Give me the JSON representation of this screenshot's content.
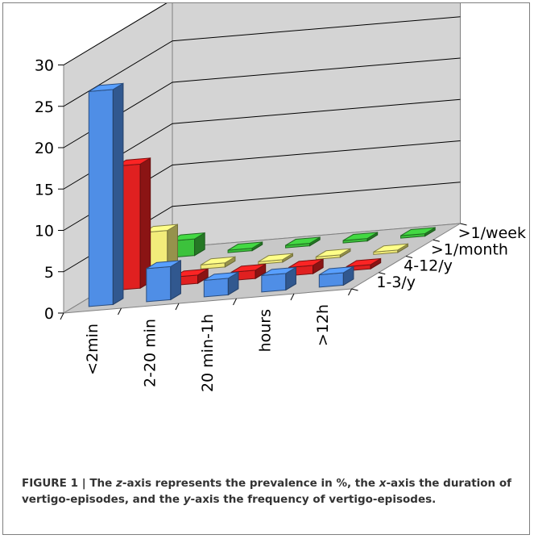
{
  "chart_data": {
    "type": "bar3d",
    "categories": [
      "<2min",
      "2-20 min",
      "20 min-1h",
      "hours",
      ">12h"
    ],
    "series": [
      {
        "name": "1-3/y",
        "values": [
          26,
          4,
          2,
          2,
          1.5
        ],
        "color": "#4f8ee6"
      },
      {
        "name": "4-12/y",
        "values": [
          15,
          1,
          1,
          1,
          0.5
        ],
        "color": "#e02020"
      },
      {
        "name": ">1/month",
        "values": [
          5,
          0.5,
          0.3,
          0.3,
          0.3
        ],
        "color": "#f2ec7a"
      },
      {
        "name": ">1/week",
        "values": [
          2,
          0.3,
          0.3,
          0.3,
          0.3
        ],
        "color": "#3cc23c"
      }
    ],
    "zlim": [
      0,
      30
    ],
    "z_ticks": [
      "0",
      "5",
      "10",
      "15",
      "20",
      "25",
      "30"
    ],
    "grid": true
  },
  "caption": {
    "label": "FIGURE 1 | ",
    "parts": [
      {
        "t": "The ",
        "i": false
      },
      {
        "t": "z",
        "i": true
      },
      {
        "t": "-axis represents the prevalence in %, the ",
        "i": false
      },
      {
        "t": "x",
        "i": true
      },
      {
        "t": "-axis the duration of vertigo-episodes, and the ",
        "i": false
      },
      {
        "t": "y",
        "i": true
      },
      {
        "t": "-axis the frequency of vertigo-episodes.",
        "i": false
      }
    ]
  }
}
